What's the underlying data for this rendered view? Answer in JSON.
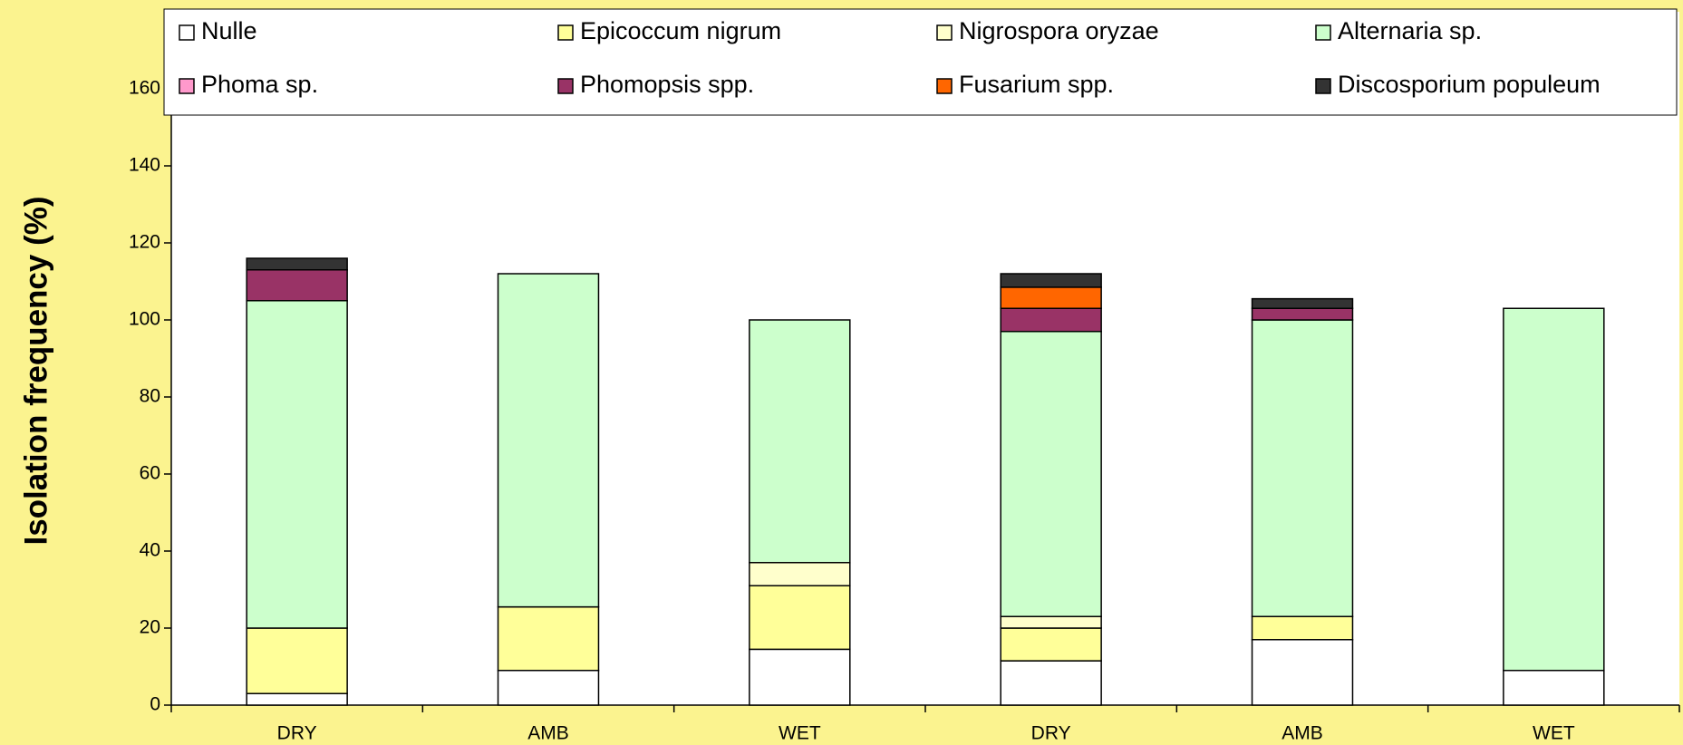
{
  "chart_data": {
    "type": "stacked_bar",
    "y_label": "Isolation frequency (%)",
    "categories": [
      "DRY",
      "AMB",
      "WET",
      "DRY",
      "AMB",
      "WET"
    ],
    "series": [
      {
        "name": "Nulle",
        "color": "#ffffff",
        "values": [
          3,
          9,
          14.5,
          11.5,
          17,
          9
        ]
      },
      {
        "name": "Epicoccum nigrum",
        "color": "#ffff99",
        "values": [
          17,
          16.5,
          16.5,
          8.5,
          6,
          0
        ]
      },
      {
        "name": "Nigrospora oryzae",
        "color": "#ffffcc",
        "values": [
          0,
          0,
          6,
          3,
          0,
          0
        ]
      },
      {
        "name": "Alternaria sp.",
        "color": "#ccffcc",
        "values": [
          85,
          86.5,
          63,
          74,
          77,
          94
        ]
      },
      {
        "name": "Phoma sp.",
        "color": "#ff99cc",
        "values": [
          0,
          0,
          0,
          0,
          0,
          0
        ]
      },
      {
        "name": "Phomopsis spp.",
        "color": "#993366",
        "values": [
          8,
          0,
          0,
          6,
          3,
          0
        ]
      },
      {
        "name": "Fusarium spp.",
        "color": "#ff6600",
        "values": [
          0,
          0,
          0,
          5.5,
          0,
          0
        ]
      },
      {
        "name": "Discosporium populeum",
        "color": "#333333",
        "values": [
          3,
          0,
          0,
          3.5,
          2.5,
          0
        ]
      }
    ],
    "ylim": [
      0,
      180
    ],
    "yticks": [
      0,
      20,
      40,
      60,
      80,
      100,
      120,
      140,
      160
    ],
    "grid": false
  }
}
